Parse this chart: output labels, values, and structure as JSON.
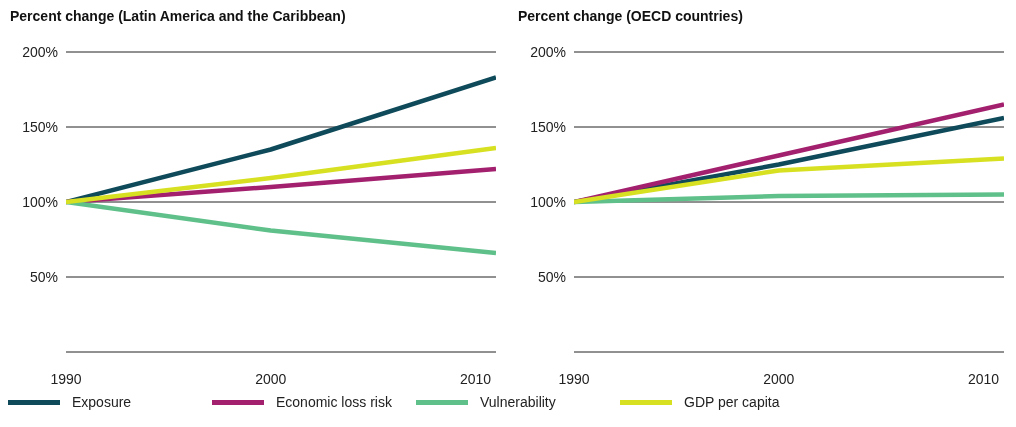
{
  "chart_data": [
    {
      "type": "line",
      "title": "Percent change (Latin America and the Caribbean)",
      "x": [
        1990,
        2000,
        2011
      ],
      "series": [
        {
          "name": "Exposure",
          "color": "#0e4a5a",
          "values": [
            100,
            135,
            183
          ]
        },
        {
          "name": "Economic loss risk",
          "color": "#a3206e",
          "values": [
            100,
            110,
            122
          ]
        },
        {
          "name": "Vulnerability",
          "color": "#5fc08a",
          "values": [
            100,
            81,
            66
          ]
        },
        {
          "name": "GDP per capita",
          "color": "#d7e021",
          "values": [
            100,
            116,
            136
          ]
        }
      ],
      "xlim": [
        1990,
        2011
      ],
      "xticks": [
        1990,
        2000,
        2010
      ],
      "ylim": [
        0,
        200
      ],
      "yticks": [
        {
          "value": 0,
          "label": null
        },
        {
          "value": 50,
          "label": "50%"
        },
        {
          "value": 100,
          "label": "100%"
        },
        {
          "value": 150,
          "label": "150%"
        },
        {
          "value": 200,
          "label": "200%"
        }
      ],
      "grid": "y",
      "legend": "bottom",
      "marker": "none",
      "line_style": "solid"
    },
    {
      "type": "line",
      "title": "Percent change (OECD countries)",
      "x": [
        1990,
        2000,
        2011
      ],
      "series": [
        {
          "color": "#0e4a5a",
          "values": [
            100,
            125,
            156
          ]
        },
        {
          "color": "#a3206e",
          "values": [
            100,
            131,
            165
          ]
        },
        {
          "color": "#5fc08a",
          "values": [
            100,
            104,
            105
          ]
        },
        {
          "color": "#d7e021",
          "values": [
            100,
            121,
            129
          ]
        }
      ],
      "xlim": [
        1990,
        2011
      ],
      "xticks": [
        1990,
        2000,
        2010
      ],
      "ylim": [
        0,
        200
      ],
      "yticks": [
        {
          "value": 0,
          "label": null
        },
        {
          "value": 50,
          "label": "50%"
        },
        {
          "value": 100,
          "label": "100%"
        },
        {
          "value": 150,
          "label": "150%"
        },
        {
          "value": 200,
          "label": "200%"
        }
      ],
      "grid": "y",
      "marker": "none",
      "line_style": "solid"
    }
  ]
}
